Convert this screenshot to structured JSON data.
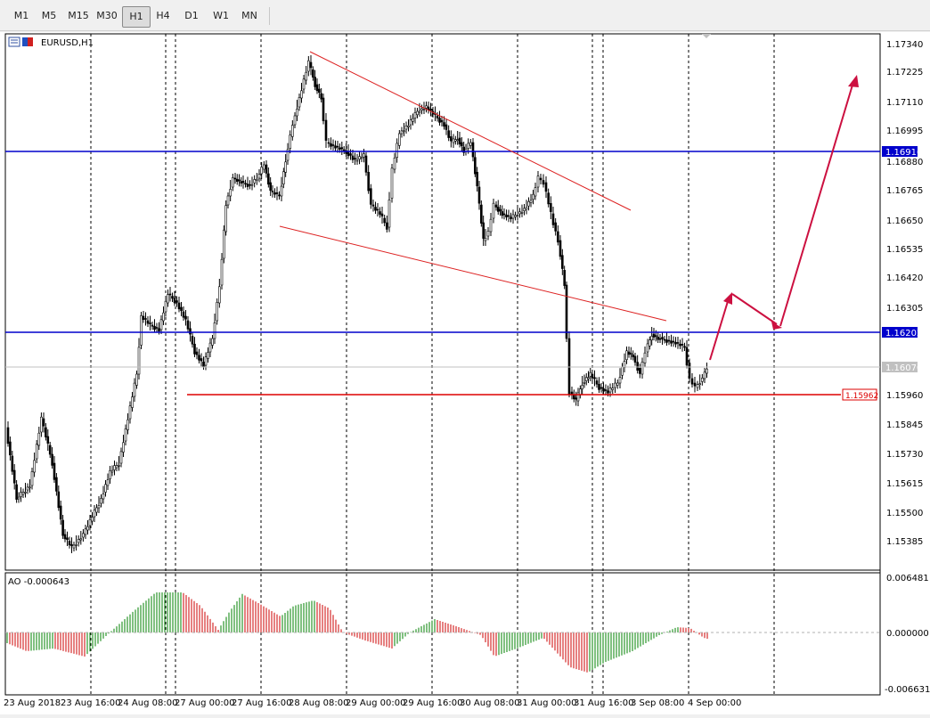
{
  "toolbar": {
    "timeframes": [
      "M1",
      "M5",
      "M15",
      "M30",
      "H1",
      "H4",
      "D1",
      "W1",
      "MN"
    ],
    "active": "H1"
  },
  "chart": {
    "symbol_label": "EURUSD,H1",
    "indicator_label": "AO -0.000643",
    "price_scale": [
      "1.17340",
      "1.17225",
      "1.17110",
      "1.16995",
      "1.16880",
      "1.16765",
      "1.16650",
      "1.16535",
      "1.16420",
      "1.16305",
      "1.15960",
      "1.15845",
      "1.15730",
      "1.15615",
      "1.15500",
      "1.15385"
    ],
    "ao_scale": [
      "0.006481",
      "0.000000",
      "-0.006631"
    ],
    "time_scale": [
      "23 Aug 2018",
      "23 Aug 16:00",
      "24 Aug 08:00",
      "27 Aug 00:00",
      "27 Aug 16:00",
      "28 Aug 08:00",
      "29 Aug 00:00",
      "29 Aug 16:00",
      "30 Aug 08:00",
      "31 Aug 00:00",
      "31 Aug 16:00",
      "3 Sep 08:00",
      "4 Sep 00:00"
    ],
    "hlines": [
      {
        "price": "1.16916",
        "color": "#0000cc"
      },
      {
        "price": "1.16202",
        "color": "#0000cc"
      }
    ],
    "support": {
      "price": "1.15962",
      "color": "#dd0000"
    },
    "current_price": "1.16070",
    "arrow_color": "#cc1040",
    "trend_color": "#dd2222"
  }
}
